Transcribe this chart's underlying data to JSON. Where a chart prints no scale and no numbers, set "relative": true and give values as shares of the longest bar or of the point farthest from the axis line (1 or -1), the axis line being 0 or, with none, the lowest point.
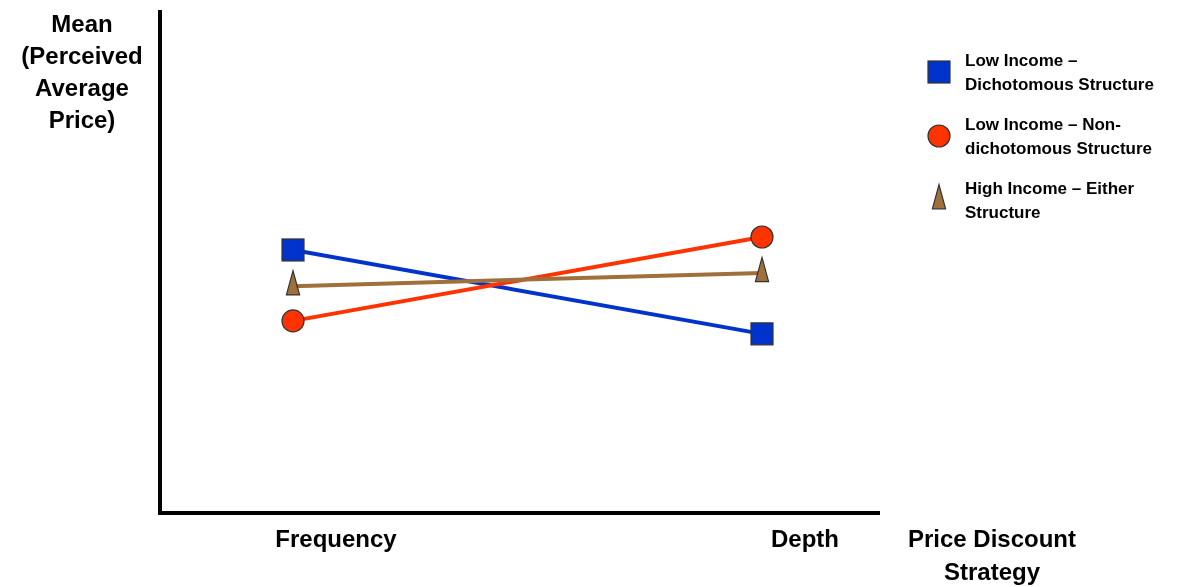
{
  "chart_data": {
    "type": "line",
    "ylabel": "Mean (Perceived Average Price)",
    "xlabel": "Price Discount Strategy",
    "categories": [
      "Frequency",
      "Depth"
    ],
    "relative": true,
    "legend": "top right",
    "series": [
      {
        "name": "Low Income – Dichotomous Structure",
        "color": "#0033cc",
        "marker": "square",
        "values": [
          0.953,
          0.649
        ]
      },
      {
        "name": "Low Income – Non-dichotomous Structure",
        "color": "#ff3300",
        "marker": "circle",
        "values": [
          0.696,
          1
        ]
      },
      {
        "name": "High Income – Either Structure",
        "color": "#a0703c",
        "marker": "triangle",
        "values": [
          0.822,
          0.87
        ]
      }
    ]
  }
}
